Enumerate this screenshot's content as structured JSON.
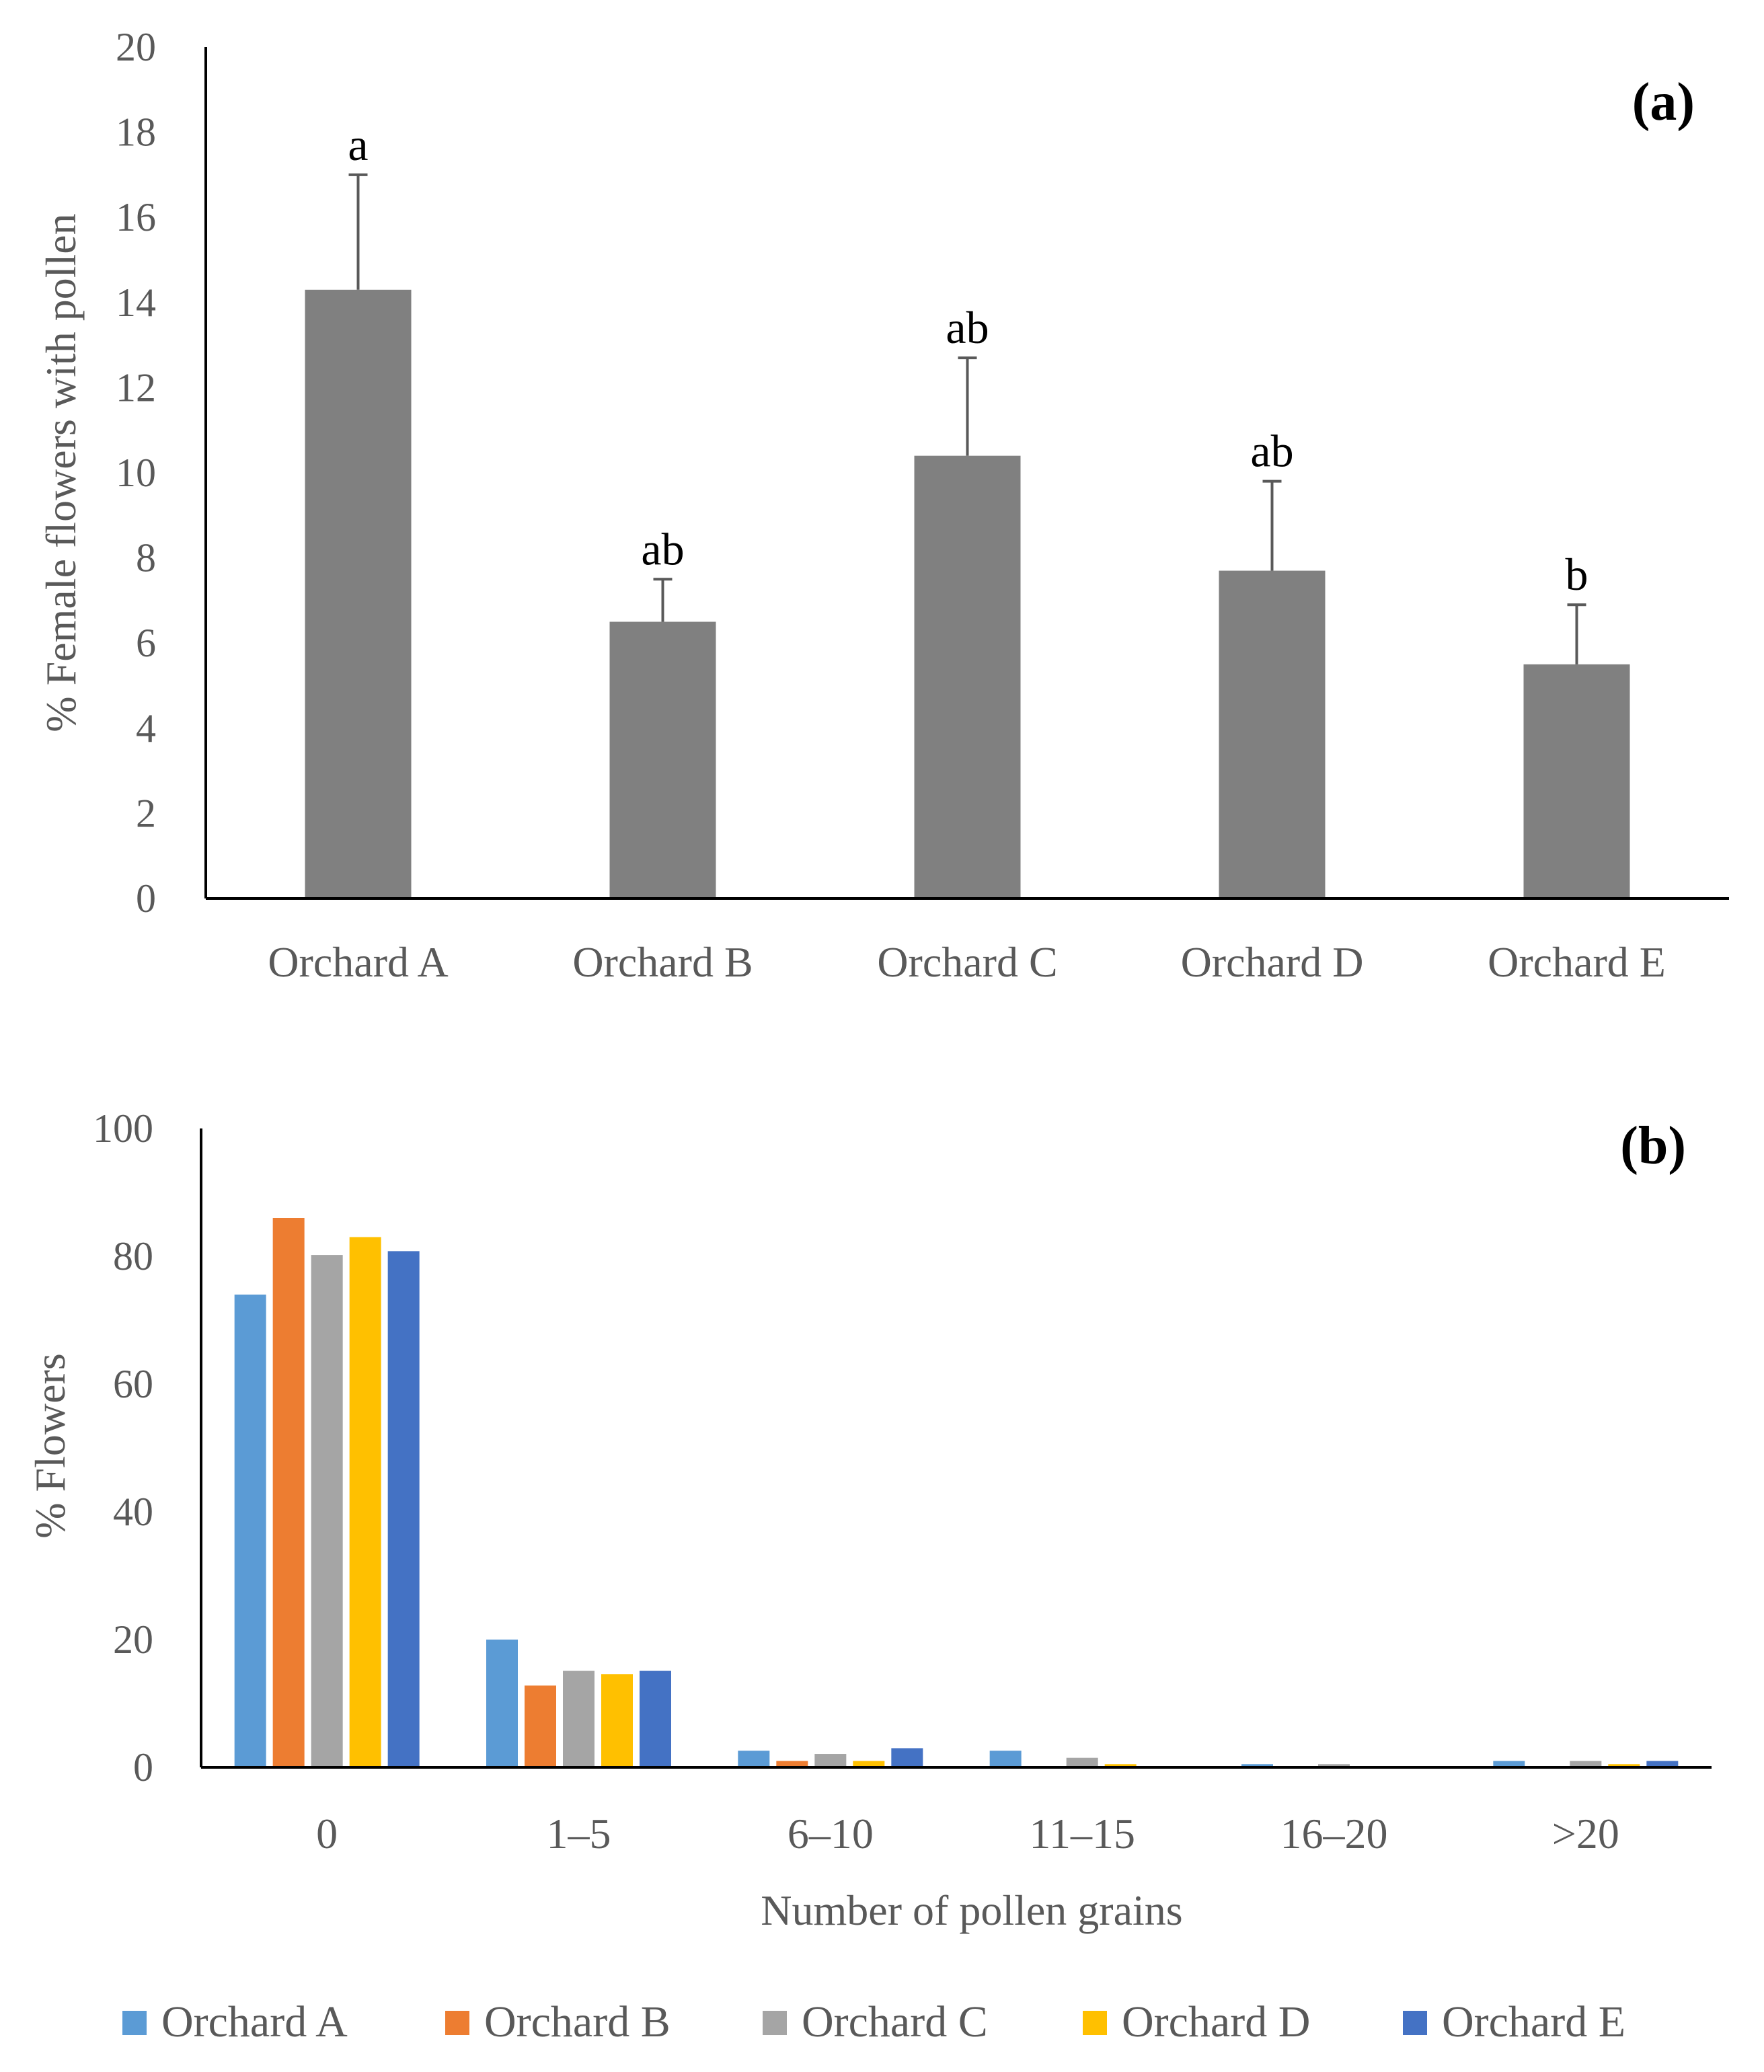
{
  "chart_data": [
    {
      "panel": "(a)",
      "type": "bar",
      "title": "",
      "xlabel": "",
      "ylabel": "% Female flowers with pollen",
      "ylim": [
        0,
        20
      ],
      "yticks": [
        0,
        2,
        4,
        6,
        8,
        10,
        12,
        14,
        16,
        18,
        20
      ],
      "categories": [
        "Orchard A",
        "Orchard B",
        "Orchard C",
        "Orchard D",
        "Orchard E"
      ],
      "values": [
        14.3,
        6.5,
        10.4,
        7.7,
        5.5
      ],
      "errors": [
        2.7,
        1.0,
        2.3,
        2.1,
        1.4
      ],
      "significance": [
        "a",
        "ab",
        "ab",
        "ab",
        "b"
      ],
      "bar_color": "#808080"
    },
    {
      "panel": "(b)",
      "type": "bar",
      "title": "",
      "xlabel": "Number of pollen grains",
      "ylabel": "% Flowers",
      "ylim": [
        0,
        100
      ],
      "yticks": [
        0,
        20,
        40,
        60,
        80,
        100
      ],
      "categories": [
        "0",
        "1–5",
        "6–10",
        "11–15",
        "16–20",
        ">20"
      ],
      "series": [
        {
          "name": "Orchard A",
          "color": "#5B9BD5",
          "values": [
            74,
            20,
            2.6,
            2.6,
            0.5,
            1.0
          ]
        },
        {
          "name": "Orchard B",
          "color": "#ED7D31",
          "values": [
            86,
            12.8,
            1.0,
            0,
            0,
            0
          ]
        },
        {
          "name": "Orchard C",
          "color": "#A5A5A5",
          "values": [
            80.2,
            15.1,
            2.1,
            1.5,
            0.5,
            1.0
          ]
        },
        {
          "name": "Orchard D",
          "color": "#FFC000",
          "values": [
            83,
            14.6,
            1.0,
            0.5,
            0,
            0.5
          ]
        },
        {
          "name": "Orchard E",
          "color": "#4472C4",
          "values": [
            80.8,
            15.1,
            3.0,
            0,
            0,
            1.0
          ]
        }
      ],
      "legend_position": "bottom"
    }
  ]
}
